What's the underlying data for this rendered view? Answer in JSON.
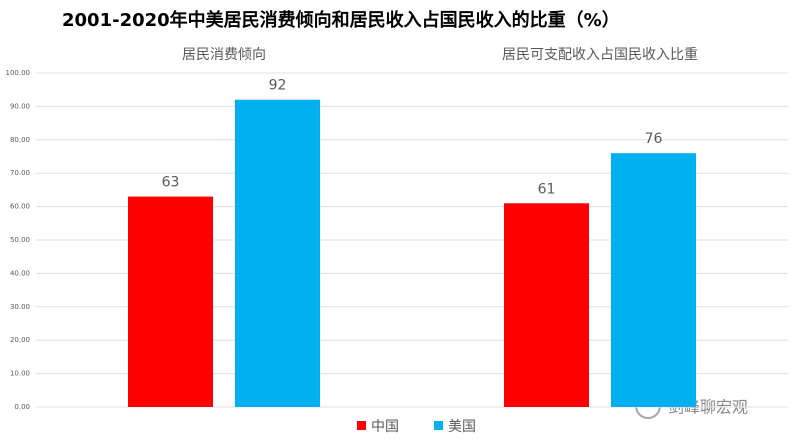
{
  "chart_data": {
    "type": "bar",
    "title": "2001-2020年中美居民消费倾向和居民收入占国民收入的比重（%）",
    "categories": [
      "居民消费倾向",
      "居民可支配收入占国民收入比重"
    ],
    "series": [
      {
        "name": "中国",
        "color": "#ff0000",
        "values": [
          63,
          61
        ]
      },
      {
        "name": "美国",
        "color": "#00b0f0",
        "values": [
          92,
          76
        ]
      }
    ],
    "ylim": [
      0,
      100
    ],
    "yticks": [
      {
        "value": 0,
        "label": "0.00"
      },
      {
        "value": 10,
        "label": "10.00"
      },
      {
        "value": 20,
        "label": "20.00"
      },
      {
        "value": 30,
        "label": "30.00"
      },
      {
        "value": 40,
        "label": "40.00"
      },
      {
        "value": 50,
        "label": "50.00"
      },
      {
        "value": 60,
        "label": "60.00"
      },
      {
        "value": 70,
        "label": "70.00"
      },
      {
        "value": 80,
        "label": "80.00"
      },
      {
        "value": 90,
        "label": "90.00"
      },
      {
        "value": 100,
        "label": "100.00"
      }
    ],
    "grid": true,
    "legend": "bottom",
    "watermark": "剑峰聊宏观"
  }
}
